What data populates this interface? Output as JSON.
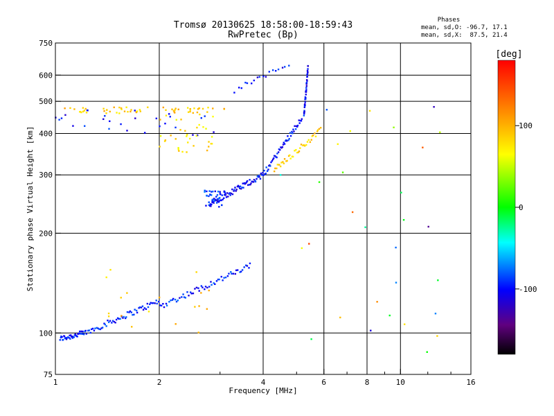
{
  "chart_data": {
    "type": "scatter",
    "title": "Tromsø 20130625 18:58:00-18:59:43",
    "subtitle": "RwPretec (Bp)",
    "xlabel": "Frequency [MHz]",
    "ylabel": "Stationary phase Virtual Height [km]",
    "x_scale": "log",
    "y_scale": "log",
    "xlim": [
      1,
      16
    ],
    "ylim": [
      75,
      750
    ],
    "x_ticks": [
      1,
      2,
      4,
      6,
      8,
      10,
      16
    ],
    "x_tick_labels": [
      "1",
      "2",
      "4",
      "6",
      "8",
      "10",
      "16"
    ],
    "x_gridlines": [
      2,
      4,
      6,
      8,
      10
    ],
    "y_ticks": [
      75,
      100,
      200,
      300,
      400,
      500,
      600,
      750
    ],
    "y_tick_labels": [
      "75",
      "100",
      "200",
      "300",
      "400",
      "500",
      "600",
      "750"
    ],
    "y_gridlines": [
      100,
      200,
      300,
      400,
      500,
      600
    ],
    "grid": true,
    "phase_box": {
      "title": "Phases",
      "line_o": "mean, sd,O: -96.7, 17.1",
      "line_x": "mean, sd,X:  87.5, 21.4"
    },
    "colorbar": {
      "label": "[deg]",
      "range": [
        -180,
        180
      ],
      "ticks": [
        100,
        0,
        -100
      ],
      "tick_labels": [
        "100",
        "0",
        "-100"
      ]
    },
    "point_groups": [
      {
        "trace": "O low",
        "phase": -95,
        "n": 40,
        "x": [
          1.03,
          1.22
        ],
        "y": [
          96,
          100
        ]
      },
      {
        "trace": "O low",
        "phase": -95,
        "n": 60,
        "x": [
          1.22,
          2.0
        ],
        "y": [
          100,
          125
        ]
      },
      {
        "trace": "O low",
        "phase": -95,
        "n": 60,
        "x": [
          2.0,
          3.7
        ],
        "y": [
          120,
          160
        ]
      },
      {
        "trace": "O scatter",
        "phase": 90,
        "n": 18,
        "x": [
          1.4,
          3.0
        ],
        "y": [
          95,
          160
        ]
      },
      {
        "trace": "O cusp",
        "phase": -90,
        "n": 40,
        "x": [
          2.7,
          3.1
        ],
        "y": [
          240,
          270
        ]
      },
      {
        "trace": "O F-trace",
        "phase": -100,
        "n": 70,
        "x": [
          2.8,
          4.0
        ],
        "y": [
          245,
          300
        ]
      },
      {
        "trace": "O F-trace",
        "phase": -100,
        "n": 50,
        "x": [
          4.0,
          5.2
        ],
        "y": [
          300,
          450
        ]
      },
      {
        "trace": "O F-trace",
        "phase": -100,
        "n": 40,
        "x": [
          5.25,
          5.4
        ],
        "y": [
          450,
          640
        ]
      },
      {
        "trace": "X F-trace",
        "phase": 85,
        "n": 40,
        "x": [
          4.3,
          5.9
        ],
        "y": [
          310,
          410
        ]
      },
      {
        "trace": "O sporadic",
        "phase": -100,
        "n": 28,
        "x": [
          1.0,
          3.0
        ],
        "y": [
          390,
          470
        ]
      },
      {
        "trace": "X sporadic",
        "phase": 90,
        "n": 55,
        "x": [
          1.05,
          3.2
        ],
        "y": [
          460,
          480
        ]
      },
      {
        "trace": "X sporadic",
        "phase": 80,
        "n": 40,
        "x": [
          2.0,
          2.9
        ],
        "y": [
          350,
          480
        ]
      },
      {
        "trace": "O upper",
        "phase": -100,
        "n": 18,
        "x": [
          3.3,
          4.8
        ],
        "y": [
          540,
          650
        ]
      },
      {
        "trace": "isolated",
        "phase": 0,
        "n": 30,
        "x": [
          4.4,
          15.0
        ],
        "y": [
          85,
          490
        ]
      }
    ]
  }
}
